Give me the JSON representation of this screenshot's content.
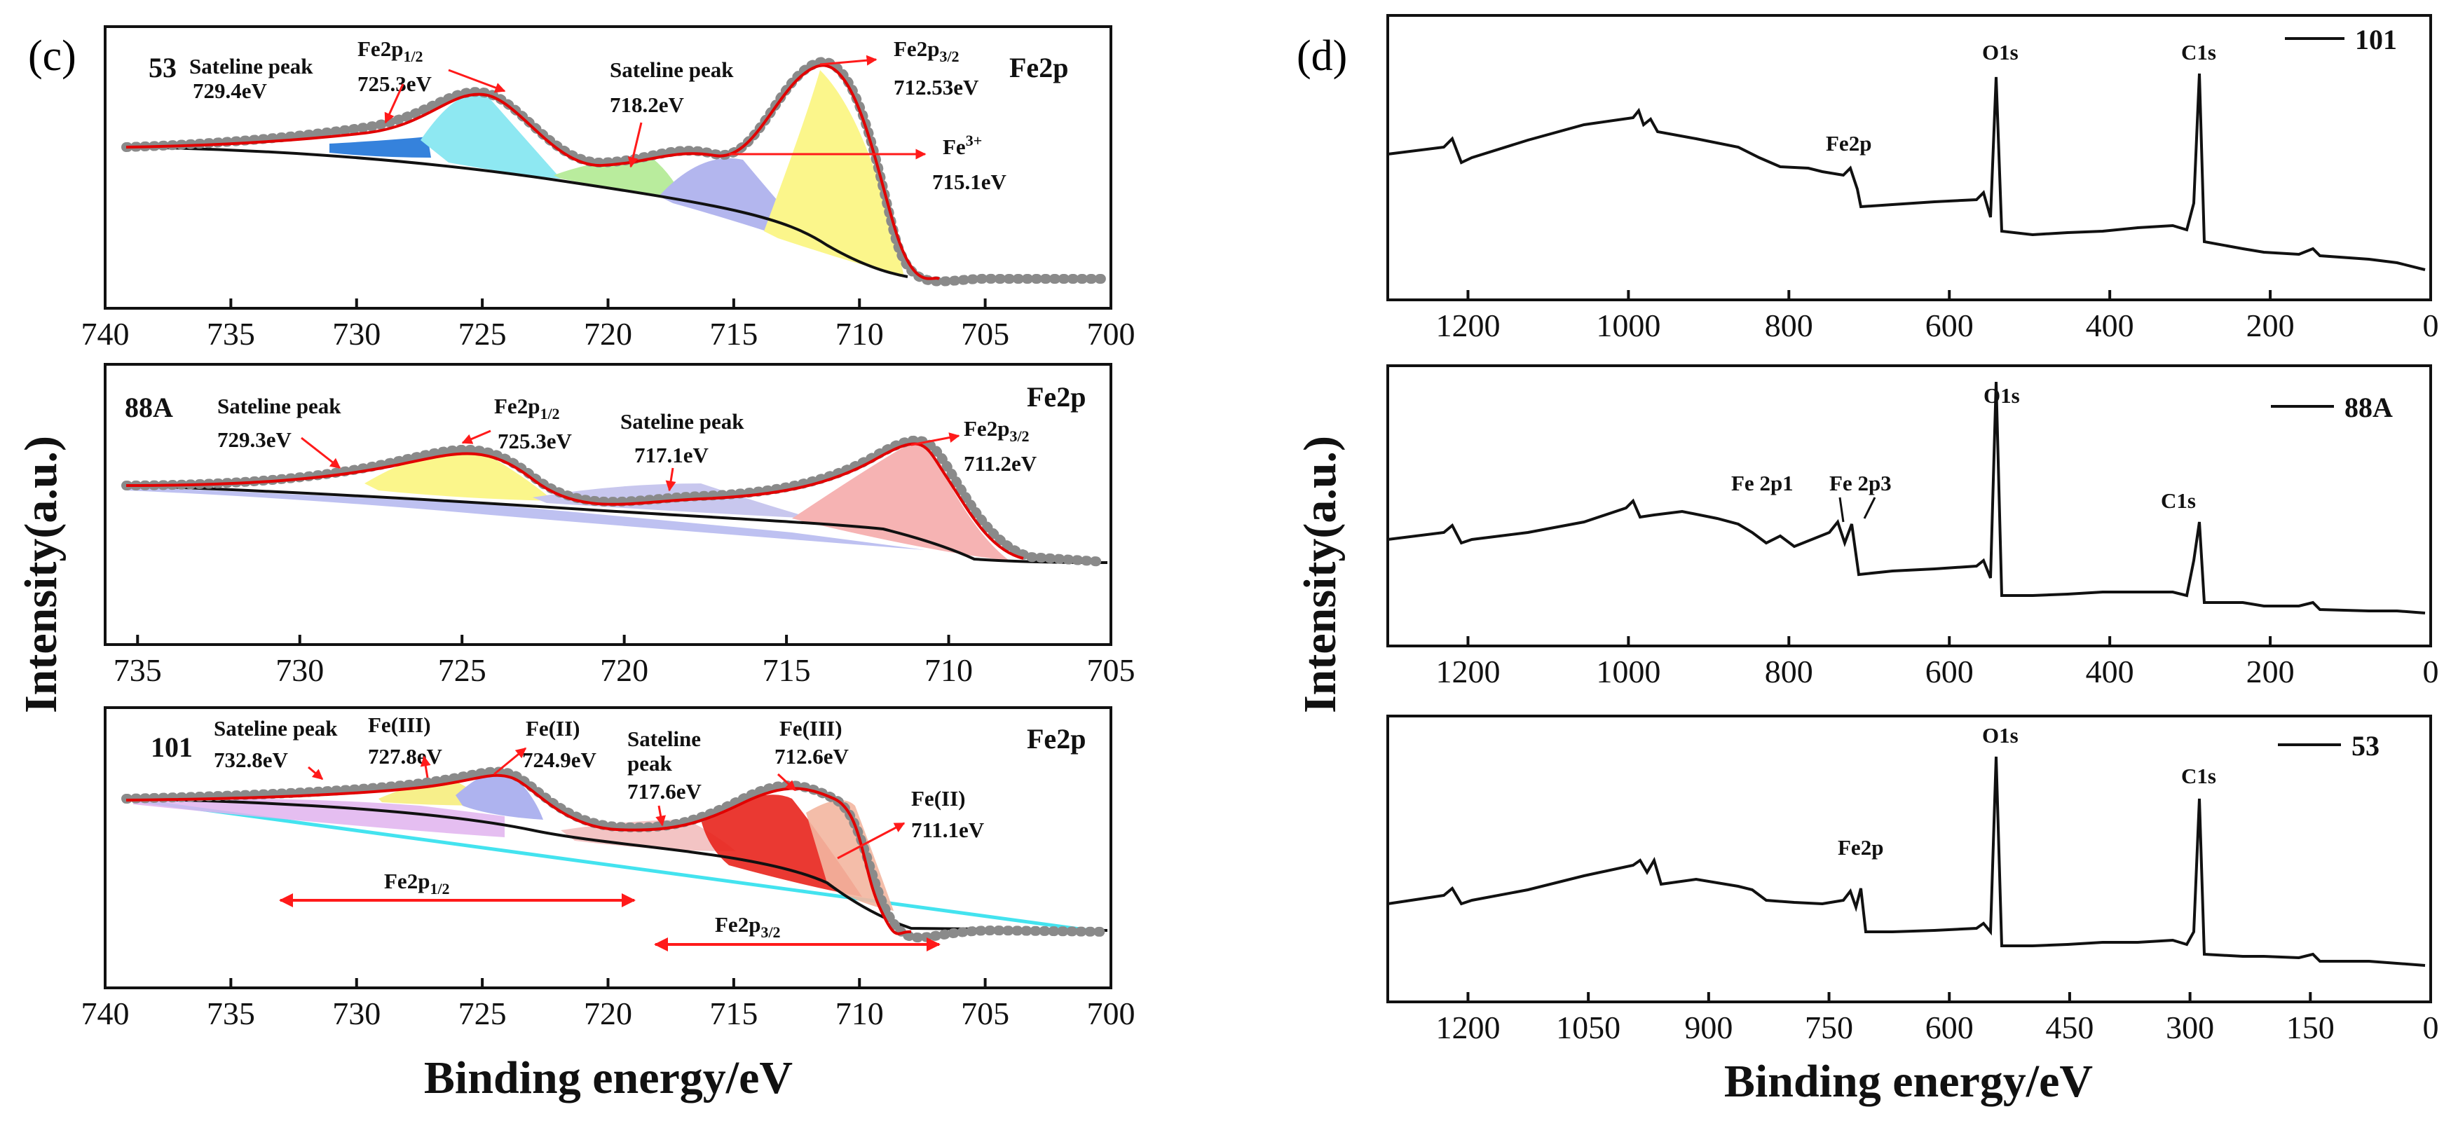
{
  "figure": {
    "panel_c_label": "(c)",
    "panel_d_label": "(d)",
    "y_label": "Intensity(a.u.)",
    "x_label_c": "Binding energy/eV",
    "x_label_d": "Binding energy/eV"
  },
  "colors": {
    "axis": "#111111",
    "envelope": "#e10000",
    "raw_points": "#8a8a8a",
    "arrow": "#ff1a1a",
    "background_line": "#111111",
    "baseline_cyan": "#43e3ef"
  },
  "chart_data": [
    {
      "type": "line",
      "name": "XPS Fe2p high-resolution spectrum of 53",
      "sample": "53",
      "region": "Fe2p",
      "xlim": [
        740,
        700
      ],
      "x_ticks": [
        740,
        735,
        730,
        725,
        720,
        715,
        710,
        705,
        700
      ],
      "x_tick_labels": [
        "740",
        "735",
        "730",
        "725",
        "720",
        "715",
        "710",
        "705",
        "700"
      ],
      "fitted_peaks": [
        {
          "label": "Sateline peak",
          "value": "729.4eV",
          "center": 729.4,
          "color": "#1f74d8"
        },
        {
          "label": "Fe2p1/2",
          "value": "725.3eV",
          "center": 725.3,
          "color": "#8ee8f2"
        },
        {
          "label": "Sateline peak",
          "value": "718.2eV",
          "center": 718.2,
          "color": "#b9ec9d"
        },
        {
          "label": "Fe3+",
          "value": "715.1eV",
          "center": 715.1,
          "color": "#b3b6ee"
        },
        {
          "label": "Fe2p3/2",
          "value": "712.53eV",
          "center": 712.53,
          "color": "#fbf68b"
        }
      ]
    },
    {
      "type": "line",
      "name": "XPS Fe2p high-resolution spectrum of 88A",
      "sample": "88A",
      "region": "Fe2p",
      "xlim": [
        736,
        705
      ],
      "x_ticks": [
        735,
        730,
        725,
        720,
        715,
        710,
        705
      ],
      "x_tick_labels": [
        "735",
        "730",
        "725",
        "720",
        "715",
        "710",
        "705"
      ],
      "fitted_peaks": [
        {
          "label": "Sateline peak",
          "value": "729.3eV",
          "center": 729.3,
          "color": "#b3b6ee"
        },
        {
          "label": "Fe2p1/2",
          "value": "725.3eV",
          "center": 725.3,
          "color": "#fbf68b"
        },
        {
          "label": "Sateline peak",
          "value": "717.1eV",
          "center": 717.1,
          "color": "#c8c7ee"
        },
        {
          "label": "Fe2p3/2",
          "value": "711.2eV",
          "center": 711.2,
          "color": "#f6b3b3"
        }
      ]
    },
    {
      "type": "line",
      "name": "XPS Fe2p high-resolution spectrum of 101",
      "sample": "101",
      "region": "Fe2p",
      "xlim": [
        740,
        700
      ],
      "x_ticks": [
        740,
        735,
        730,
        725,
        720,
        715,
        710,
        705,
        700
      ],
      "x_tick_labels": [
        "740",
        "735",
        "730",
        "725",
        "720",
        "715",
        "710",
        "705",
        "700"
      ],
      "fitted_peaks": [
        {
          "label": "Sateline peak",
          "value": "732.8eV",
          "center": 732.8,
          "color": "#e0b3ee"
        },
        {
          "label": "Fe(III)",
          "value": "727.8eV",
          "center": 727.8,
          "color": "#f7ef8a"
        },
        {
          "label": "Fe(II)",
          "value": "724.9eV",
          "center": 724.9,
          "color": "#aeb3ef"
        },
        {
          "label": "Sateline peak",
          "value": "717.6eV",
          "center": 717.6,
          "color": "#f3c4c4"
        },
        {
          "label": "Fe(III)",
          "value": "712.6eV",
          "center": 712.6,
          "color": "#e8231c"
        },
        {
          "label": "Fe(II)",
          "value": "711.1eV",
          "center": 711.1,
          "color": "#f3b6a0"
        }
      ],
      "regions": [
        {
          "label": "Fe2p1/2",
          "from": 734,
          "to": 719.5
        },
        {
          "label": "Fe2p3/2",
          "from": 718,
          "to": 707
        }
      ]
    },
    {
      "type": "line",
      "name": "XPS survey spectrum of 101",
      "legend": "101",
      "xlim": [
        1300,
        0
      ],
      "x_ticks": [
        1200,
        1000,
        800,
        600,
        400,
        200,
        0
      ],
      "x_tick_labels": [
        "1200",
        "1000",
        "800",
        "600",
        "400",
        "200",
        "0"
      ],
      "annotations": [
        "O1s",
        "C1s",
        "Fe2p"
      ],
      "peaks": {
        "O1s": 531,
        "C1s": 285,
        "Fe2p": 711
      }
    },
    {
      "type": "line",
      "name": "XPS survey spectrum of 88A",
      "legend": "88A",
      "xlim": [
        1300,
        0
      ],
      "x_ticks": [
        1200,
        1000,
        800,
        600,
        400,
        200,
        0
      ],
      "x_tick_labels": [
        "1200",
        "1000",
        "800",
        "600",
        "400",
        "200",
        "0"
      ],
      "annotations": [
        "O1s",
        "C1s",
        "Fe 2p1",
        "Fe 2p3"
      ],
      "peaks": {
        "O1s": 531,
        "C1s": 285,
        "Fe 2p1": 725,
        "Fe 2p3": 711
      }
    },
    {
      "type": "line",
      "name": "XPS survey spectrum of 53",
      "legend": "53",
      "xlim": [
        1300,
        0
      ],
      "x_ticks": [
        1200,
        1050,
        900,
        750,
        600,
        450,
        300,
        150,
        0
      ],
      "x_tick_labels": [
        "1200",
        "1050",
        "900",
        "750",
        "600",
        "450",
        "300",
        "150",
        "0"
      ],
      "annotations": [
        "O1s",
        "C1s",
        "Fe2p"
      ],
      "peaks": {
        "O1s": 531,
        "C1s": 285,
        "Fe2p": 711
      }
    }
  ]
}
